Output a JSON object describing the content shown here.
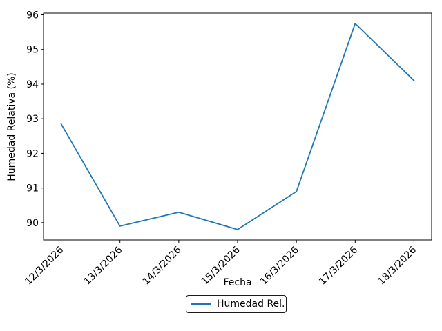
{
  "figure": {
    "background": "#ffffff"
  },
  "colors": {
    "line": "#1f77b4",
    "text": "#000000",
    "axis": "#000000",
    "legend_border": "#1a1a1a"
  },
  "chart_data": {
    "type": "line",
    "title": "",
    "xlabel": "Fecha",
    "ylabel": "Humedad Relativa (%)",
    "categories": [
      "12/3/2026",
      "13/3/2026",
      "14/3/2026",
      "15/3/2026",
      "16/3/2026",
      "17/3/2026",
      "18/3/2026"
    ],
    "series": [
      {
        "name": "Humedad Rel.",
        "color": "#1f77b4",
        "values": [
          92.85,
          89.9,
          90.3,
          89.8,
          90.9,
          95.75,
          94.1
        ]
      }
    ],
    "yticks": [
      90,
      91,
      92,
      93,
      94,
      95,
      96
    ],
    "ylim": [
      89.5,
      96.05
    ],
    "x_tick_rotation": 45,
    "grid": false,
    "legend_position": "lower center outside"
  }
}
